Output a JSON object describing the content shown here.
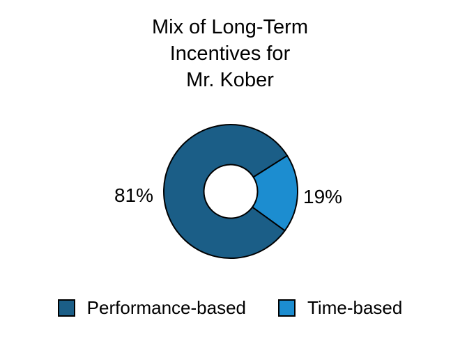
{
  "title": {
    "lines": [
      "Mix of Long-Term",
      "Incentives for",
      "Mr. Kober"
    ],
    "text": "Mix of Long-Term Incentives for Mr. Kober"
  },
  "chart_data": {
    "type": "pie",
    "subtype": "donut",
    "title": "Mix of Long-Term Incentives for Mr. Kober",
    "unit": "%",
    "series": [
      {
        "name": "Performance-based",
        "value": 81,
        "label": "81%",
        "color": "#1B5E87"
      },
      {
        "name": "Time-based",
        "value": 19,
        "label": "19%",
        "color": "#1C8DD0"
      }
    ],
    "legend_position": "bottom",
    "start_angle_deg": 36,
    "direction": "clockwise",
    "stroke_color": "#000000",
    "background_color": "#FFFFFF",
    "text_color": "#000000"
  }
}
